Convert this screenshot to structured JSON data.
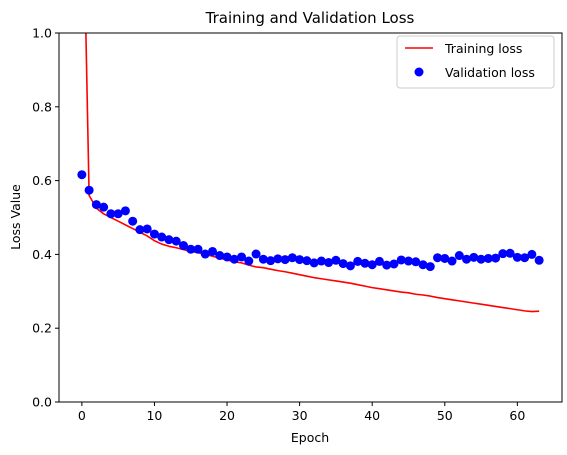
{
  "chart_data": {
    "type": "line",
    "title": "Training and Validation Loss",
    "xlabel": "Epoch",
    "ylabel": "Loss Value",
    "xlim": [
      -3.15,
      66.15
    ],
    "ylim": [
      0,
      1.0
    ],
    "xticks": [
      0,
      10,
      20,
      30,
      40,
      50,
      60
    ],
    "yticks": [
      0.0,
      0.2,
      0.4,
      0.6,
      0.8,
      1.0
    ],
    "xtick_labels": [
      "0",
      "10",
      "20",
      "30",
      "40",
      "50",
      "60"
    ],
    "ytick_labels": [
      "0.0",
      "0.2",
      "0.4",
      "0.6",
      "0.8",
      "1.0"
    ],
    "grid": false,
    "legend_position": "top-right",
    "series": [
      {
        "name": "Training loss",
        "style": "line",
        "color": "#ff0000",
        "x": [
          0,
          1,
          2,
          3,
          4,
          5,
          6,
          7,
          8,
          9,
          10,
          11,
          12,
          13,
          14,
          15,
          16,
          17,
          18,
          19,
          20,
          21,
          22,
          23,
          24,
          25,
          26,
          27,
          28,
          29,
          30,
          31,
          32,
          33,
          34,
          35,
          36,
          37,
          38,
          39,
          40,
          41,
          42,
          43,
          44,
          45,
          46,
          47,
          48,
          49,
          50,
          51,
          52,
          53,
          54,
          55,
          56,
          57,
          58,
          59,
          60,
          61,
          62,
          63
        ],
        "values": [
          1.55,
          0.56,
          0.525,
          0.51,
          0.5,
          0.49,
          0.48,
          0.47,
          0.46,
          0.45,
          0.437,
          0.428,
          0.422,
          0.418,
          0.413,
          0.408,
          0.405,
          0.4,
          0.395,
          0.39,
          0.385,
          0.38,
          0.377,
          0.371,
          0.366,
          0.364,
          0.36,
          0.356,
          0.353,
          0.349,
          0.345,
          0.341,
          0.337,
          0.334,
          0.331,
          0.328,
          0.325,
          0.322,
          0.318,
          0.314,
          0.31,
          0.307,
          0.304,
          0.301,
          0.298,
          0.296,
          0.292,
          0.29,
          0.287,
          0.283,
          0.28,
          0.277,
          0.274,
          0.271,
          0.268,
          0.265,
          0.262,
          0.259,
          0.256,
          0.253,
          0.25,
          0.247,
          0.245,
          0.246
        ]
      },
      {
        "name": "Validation loss",
        "style": "points",
        "color": "#0000ff",
        "x": [
          0,
          1,
          2,
          3,
          4,
          5,
          6,
          7,
          8,
          9,
          10,
          11,
          12,
          13,
          14,
          15,
          16,
          17,
          18,
          19,
          20,
          21,
          22,
          23,
          24,
          25,
          26,
          27,
          28,
          29,
          30,
          31,
          32,
          33,
          34,
          35,
          36,
          37,
          38,
          39,
          40,
          41,
          42,
          43,
          44,
          45,
          46,
          47,
          48,
          49,
          50,
          51,
          52,
          53,
          54,
          55,
          56,
          57,
          58,
          59,
          60,
          61,
          62,
          63
        ],
        "values": [
          0.616,
          0.574,
          0.535,
          0.528,
          0.51,
          0.51,
          0.518,
          0.49,
          0.467,
          0.469,
          0.455,
          0.447,
          0.44,
          0.436,
          0.424,
          0.414,
          0.414,
          0.401,
          0.408,
          0.397,
          0.393,
          0.387,
          0.393,
          0.382,
          0.401,
          0.387,
          0.383,
          0.388,
          0.386,
          0.391,
          0.386,
          0.383,
          0.377,
          0.382,
          0.378,
          0.384,
          0.375,
          0.369,
          0.381,
          0.376,
          0.372,
          0.381,
          0.371,
          0.374,
          0.385,
          0.382,
          0.38,
          0.372,
          0.367,
          0.391,
          0.389,
          0.382,
          0.397,
          0.387,
          0.392,
          0.387,
          0.389,
          0.39,
          0.402,
          0.403,
          0.392,
          0.391,
          0.4,
          0.384
        ]
      }
    ]
  }
}
